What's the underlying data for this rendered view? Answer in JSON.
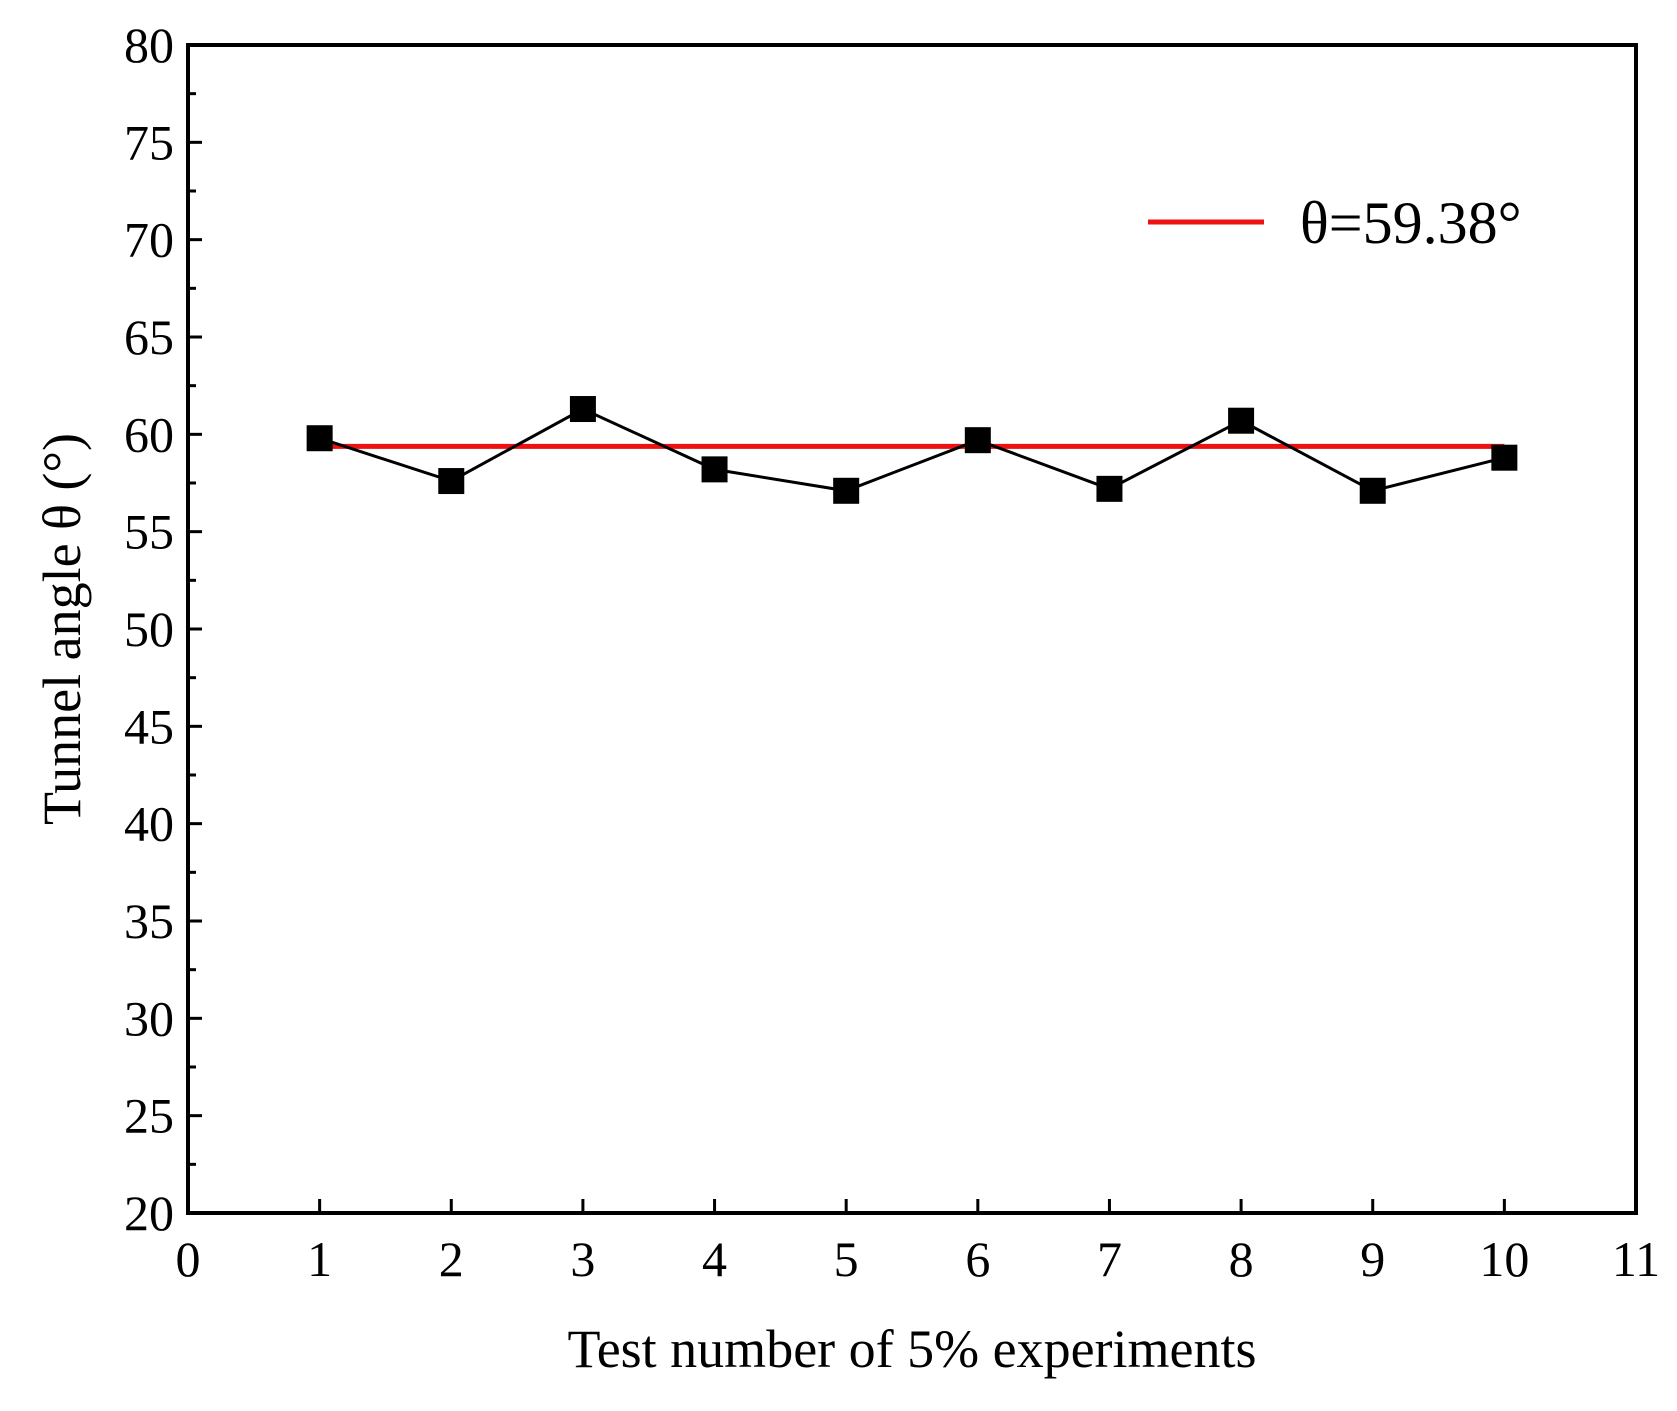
{
  "chart_data": {
    "type": "line",
    "title": "",
    "xlabel": "Test number of 5% experiments",
    "ylabel": "Tunnel angle θ (°)",
    "xlim": [
      0,
      11
    ],
    "ylim": [
      20,
      80
    ],
    "xticks": [
      0,
      1,
      2,
      3,
      4,
      5,
      6,
      7,
      8,
      9,
      10,
      11
    ],
    "yticks": [
      20,
      25,
      30,
      35,
      40,
      45,
      50,
      55,
      60,
      65,
      70,
      75,
      80
    ],
    "xtick_labels": [
      "0",
      "1",
      "2",
      "3",
      "4",
      "5",
      "6",
      "7",
      "8",
      "9",
      "10",
      "11"
    ],
    "ytick_labels": [
      "20",
      "25",
      "30",
      "35",
      "40",
      "45",
      "50",
      "55",
      "60",
      "65",
      "70",
      "75",
      "80"
    ],
    "grid": false,
    "series": [
      {
        "name": "Tunnel angle",
        "marker": "square",
        "color": "#000000",
        "x": [
          1,
          2,
          3,
          4,
          5,
          6,
          7,
          8,
          9,
          10
        ],
        "y": [
          59.8,
          57.6,
          61.3,
          58.2,
          57.1,
          59.7,
          57.2,
          60.7,
          57.1,
          58.8
        ]
      }
    ],
    "reference_line": {
      "label": "θ=59.38°",
      "value": 59.38,
      "x_range": [
        1,
        10
      ],
      "color": "#ee1111"
    },
    "legend_position": "top-right"
  }
}
